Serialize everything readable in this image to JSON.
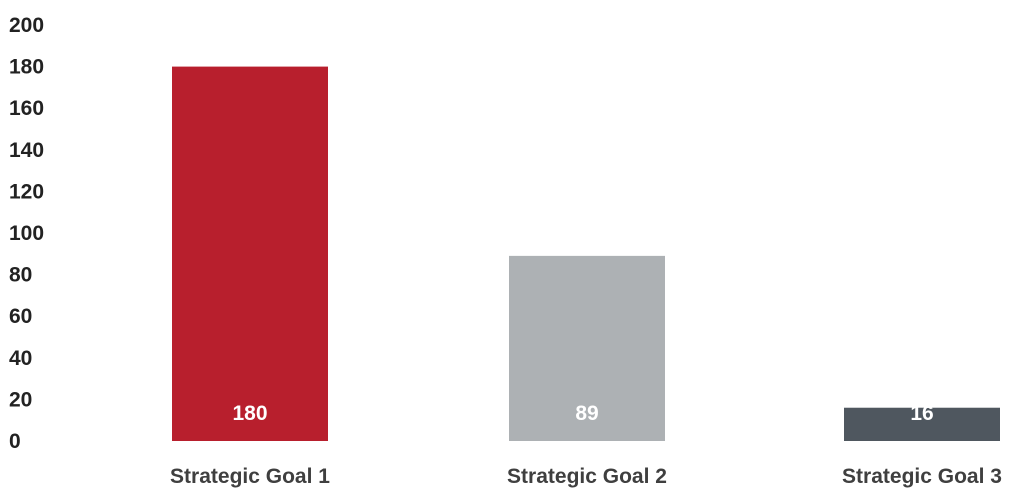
{
  "chart_data": {
    "type": "bar",
    "title": "",
    "xlabel": "",
    "ylabel": "",
    "categories": [
      "Strategic Goal 1",
      "Strategic Goal 2",
      "Strategic Goal 3"
    ],
    "values": [
      180,
      89,
      16
    ],
    "data_labels": [
      "180",
      "89",
      "16"
    ],
    "bar_colors": [
      "#b81f2d",
      "#adb1b4",
      "#4f575f"
    ],
    "ylim": [
      0,
      200
    ],
    "yticks": [
      0,
      20,
      40,
      60,
      80,
      100,
      120,
      140,
      160,
      180,
      200
    ],
    "ytick_labels": [
      "0",
      "20",
      "40",
      "60",
      "80",
      "100",
      "120",
      "140",
      "160",
      "180",
      "200"
    ],
    "grid": false,
    "legend": "none"
  }
}
